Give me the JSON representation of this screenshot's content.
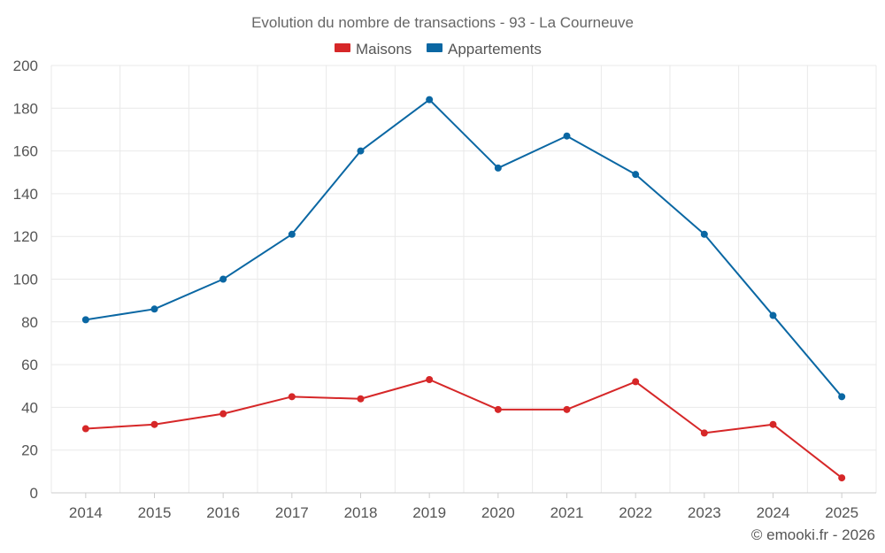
{
  "chart_data": {
    "type": "line",
    "title": "Evolution du nombre de transactions - 93 - La Courneuve",
    "categories": [
      "2014",
      "2015",
      "2016",
      "2017",
      "2018",
      "2019",
      "2020",
      "2021",
      "2022",
      "2023",
      "2024",
      "2025"
    ],
    "series": [
      {
        "name": "Maisons",
        "color": "#d62728",
        "values": [
          30,
          32,
          37,
          45,
          44,
          53,
          39,
          39,
          52,
          28,
          32,
          7
        ]
      },
      {
        "name": "Appartements",
        "color": "#0a67a3",
        "values": [
          81,
          86,
          100,
          121,
          160,
          184,
          152,
          167,
          149,
          121,
          83,
          45
        ]
      }
    ],
    "ylim": [
      0,
      200
    ],
    "yticks": [
      0,
      20,
      40,
      60,
      80,
      100,
      120,
      140,
      160,
      180,
      200
    ],
    "xlabel": "",
    "ylabel": "",
    "grid": true,
    "legend_position": "top-center"
  },
  "credit": "© emooki.fr - 2026"
}
